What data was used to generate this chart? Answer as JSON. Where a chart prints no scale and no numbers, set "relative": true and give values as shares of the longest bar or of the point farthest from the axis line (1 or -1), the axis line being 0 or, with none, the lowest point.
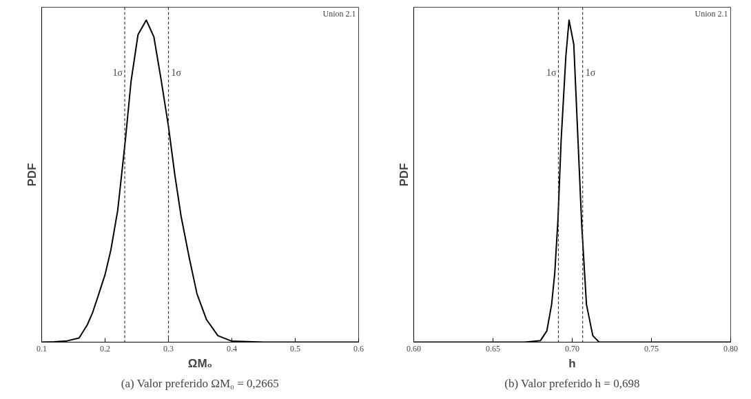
{
  "chart_data": [
    {
      "type": "line",
      "title": "(a) Valor preferido ΩM₀ = 0,2665",
      "xlabel": "ΩM₀",
      "ylabel": "PDF",
      "relative": true,
      "grid": false,
      "series": [
        {
          "color": "#000000",
          "x": [
            0.1,
            0.12,
            0.14,
            0.159,
            0.172,
            0.18,
            0.189,
            0.2,
            0.209,
            0.22,
            0.232,
            0.241,
            0.252,
            0.265,
            0.277,
            0.288,
            0.3,
            0.31,
            0.32,
            0.333,
            0.345,
            0.36,
            0.378,
            0.4,
            0.45,
            0.6
          ],
          "values": [
            0,
            0.001,
            0.004,
            0.013,
            0.054,
            0.09,
            0.143,
            0.21,
            0.285,
            0.41,
            0.627,
            0.81,
            0.955,
            1,
            0.948,
            0.82,
            0.67,
            0.52,
            0.39,
            0.26,
            0.15,
            0.07,
            0.02,
            0.003,
            0,
            0
          ]
        }
      ],
      "xlim": [
        0.1,
        0.6
      ],
      "xticks": [
        0.1,
        0.2,
        0.3,
        0.4,
        0.5,
        0.6
      ],
      "ref_lines": [
        {
          "axis": "x",
          "value": 0.231,
          "label": "1σ",
          "line_style": "dashed"
        },
        {
          "axis": "x",
          "value": 0.3,
          "label": "1σ",
          "line_style": "dashed"
        }
      ],
      "annotations": [
        "Union 2.1"
      ]
    },
    {
      "type": "line",
      "title": "(b) Valor preferido h = 0,698",
      "xlabel": "h",
      "ylabel": "PDF",
      "relative": true,
      "grid": false,
      "series": [
        {
          "color": "#000000",
          "x": [
            0.6,
            0.67,
            0.68,
            0.684,
            0.687,
            0.689,
            0.691,
            0.693,
            0.696,
            0.698,
            0.701,
            0.703,
            0.706,
            0.709,
            0.713,
            0.717,
            0.73,
            0.8
          ],
          "values": [
            0,
            0,
            0.005,
            0.035,
            0.117,
            0.215,
            0.38,
            0.626,
            0.888,
            1,
            0.925,
            0.7,
            0.364,
            0.117,
            0.02,
            0,
            0,
            0
          ]
        }
      ],
      "xlim": [
        0.6,
        0.8
      ],
      "xticks": [
        {
          "value": 0.6,
          "label": "0.60"
        },
        {
          "value": 0.65,
          "label": "0.65"
        },
        {
          "value": 0.7,
          "label": "0.70"
        },
        {
          "value": 0.75,
          "label": "0.75"
        },
        {
          "value": 0.8,
          "label": "0.80"
        }
      ],
      "ref_lines": [
        {
          "axis": "x",
          "value": 0.6913,
          "label": "1σ",
          "line_style": "dashed"
        },
        {
          "axis": "x",
          "value": 0.7066,
          "label": "1σ",
          "line_style": "dashed"
        }
      ],
      "annotations": [
        "Union 2.1"
      ]
    }
  ]
}
